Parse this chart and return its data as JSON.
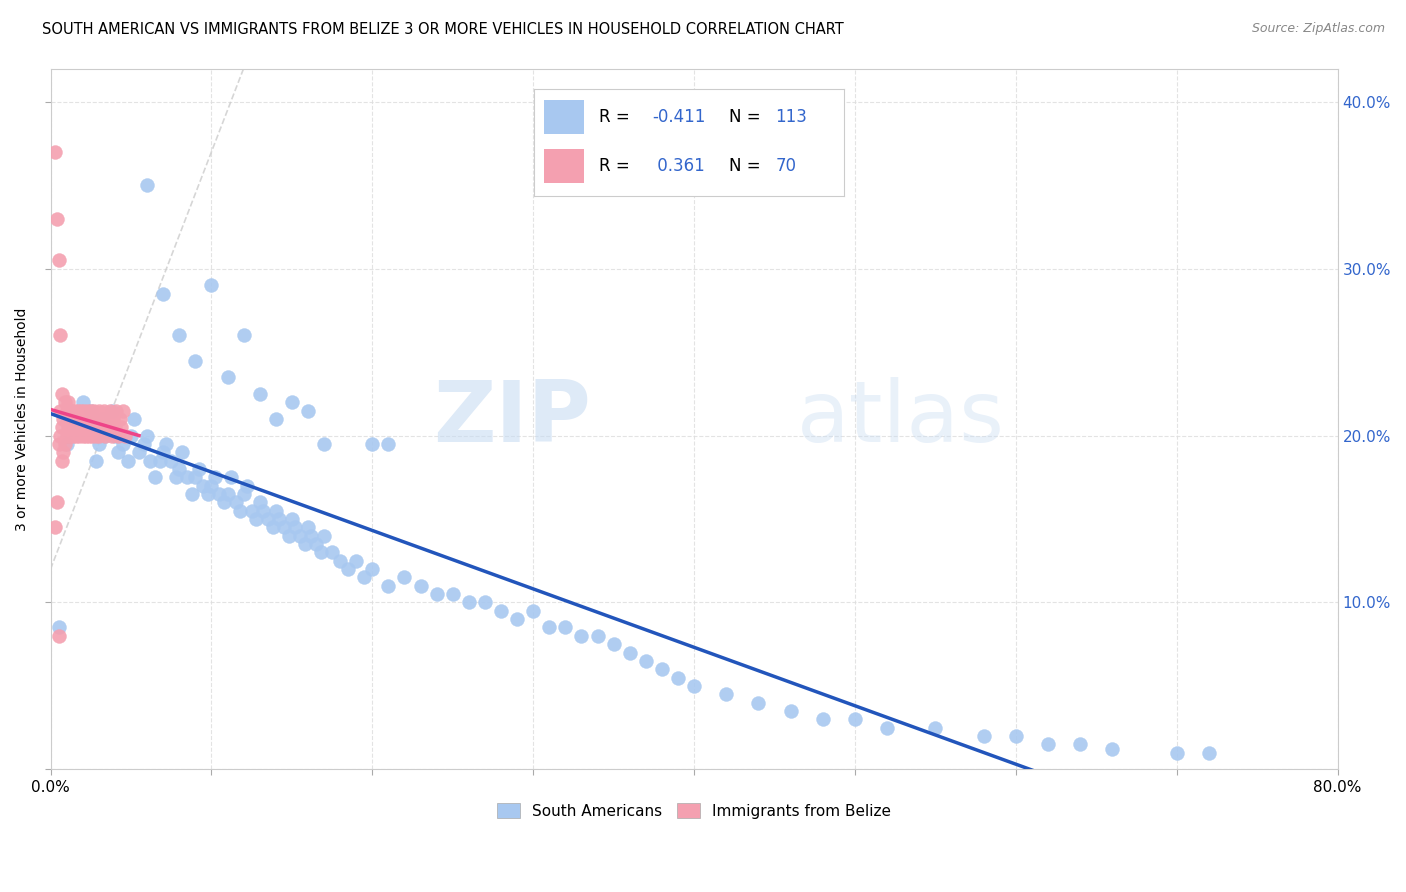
{
  "title": "SOUTH AMERICAN VS IMMIGRANTS FROM BELIZE 3 OR MORE VEHICLES IN HOUSEHOLD CORRELATION CHART",
  "source": "Source: ZipAtlas.com",
  "ylabel": "3 or more Vehicles in Household",
  "xlim": [
    0.0,
    0.8
  ],
  "ylim": [
    0.0,
    0.42
  ],
  "blue_color": "#A8C8F0",
  "pink_color": "#F4A0B0",
  "trendline_blue": "#2255BB",
  "trendline_pink": "#EE4488",
  "background_color": "#FFFFFF",
  "watermark_zip": "ZIP",
  "watermark_atlas": "atlas",
  "south_americans_x": [
    0.005,
    0.01,
    0.015,
    0.02,
    0.025,
    0.028,
    0.03,
    0.032,
    0.034,
    0.036,
    0.038,
    0.04,
    0.042,
    0.045,
    0.048,
    0.05,
    0.052,
    0.055,
    0.058,
    0.06,
    0.062,
    0.065,
    0.068,
    0.07,
    0.072,
    0.075,
    0.078,
    0.08,
    0.082,
    0.085,
    0.088,
    0.09,
    0.092,
    0.095,
    0.098,
    0.1,
    0.102,
    0.105,
    0.108,
    0.11,
    0.112,
    0.115,
    0.118,
    0.12,
    0.122,
    0.125,
    0.128,
    0.13,
    0.132,
    0.135,
    0.138,
    0.14,
    0.142,
    0.145,
    0.148,
    0.15,
    0.152,
    0.155,
    0.158,
    0.16,
    0.162,
    0.165,
    0.168,
    0.17,
    0.175,
    0.18,
    0.185,
    0.19,
    0.195,
    0.2,
    0.21,
    0.22,
    0.23,
    0.24,
    0.25,
    0.26,
    0.27,
    0.28,
    0.29,
    0.3,
    0.31,
    0.32,
    0.33,
    0.34,
    0.35,
    0.36,
    0.37,
    0.38,
    0.39,
    0.4,
    0.42,
    0.44,
    0.46,
    0.48,
    0.5,
    0.52,
    0.55,
    0.58,
    0.6,
    0.62,
    0.64,
    0.66,
    0.7,
    0.72,
    0.06,
    0.07,
    0.08,
    0.09,
    0.1,
    0.11,
    0.12,
    0.13,
    0.14,
    0.15,
    0.16,
    0.17,
    0.2,
    0.21
  ],
  "south_americans_y": [
    0.085,
    0.195,
    0.21,
    0.22,
    0.215,
    0.185,
    0.195,
    0.21,
    0.2,
    0.205,
    0.215,
    0.2,
    0.19,
    0.195,
    0.185,
    0.2,
    0.21,
    0.19,
    0.195,
    0.2,
    0.185,
    0.175,
    0.185,
    0.19,
    0.195,
    0.185,
    0.175,
    0.18,
    0.19,
    0.175,
    0.165,
    0.175,
    0.18,
    0.17,
    0.165,
    0.17,
    0.175,
    0.165,
    0.16,
    0.165,
    0.175,
    0.16,
    0.155,
    0.165,
    0.17,
    0.155,
    0.15,
    0.16,
    0.155,
    0.15,
    0.145,
    0.155,
    0.15,
    0.145,
    0.14,
    0.15,
    0.145,
    0.14,
    0.135,
    0.145,
    0.14,
    0.135,
    0.13,
    0.14,
    0.13,
    0.125,
    0.12,
    0.125,
    0.115,
    0.12,
    0.11,
    0.115,
    0.11,
    0.105,
    0.105,
    0.1,
    0.1,
    0.095,
    0.09,
    0.095,
    0.085,
    0.085,
    0.08,
    0.08,
    0.075,
    0.07,
    0.065,
    0.06,
    0.055,
    0.05,
    0.045,
    0.04,
    0.035,
    0.03,
    0.03,
    0.025,
    0.025,
    0.02,
    0.02,
    0.015,
    0.015,
    0.012,
    0.01,
    0.01,
    0.35,
    0.285,
    0.26,
    0.245,
    0.29,
    0.235,
    0.26,
    0.225,
    0.21,
    0.22,
    0.215,
    0.195,
    0.195,
    0.195
  ],
  "belize_x": [
    0.003,
    0.004,
    0.005,
    0.005,
    0.006,
    0.006,
    0.007,
    0.007,
    0.007,
    0.008,
    0.008,
    0.009,
    0.009,
    0.01,
    0.01,
    0.011,
    0.011,
    0.012,
    0.012,
    0.013,
    0.013,
    0.014,
    0.014,
    0.015,
    0.015,
    0.016,
    0.016,
    0.017,
    0.017,
    0.018,
    0.018,
    0.019,
    0.019,
    0.02,
    0.02,
    0.021,
    0.021,
    0.022,
    0.022,
    0.023,
    0.023,
    0.024,
    0.024,
    0.025,
    0.025,
    0.026,
    0.026,
    0.027,
    0.027,
    0.028,
    0.028,
    0.029,
    0.03,
    0.03,
    0.031,
    0.032,
    0.033,
    0.034,
    0.035,
    0.036,
    0.037,
    0.038,
    0.039,
    0.04,
    0.041,
    0.042,
    0.043,
    0.044,
    0.045,
    0.046,
    0.003,
    0.004,
    0.005,
    0.006
  ],
  "belize_y": [
    0.145,
    0.16,
    0.08,
    0.195,
    0.2,
    0.215,
    0.185,
    0.205,
    0.225,
    0.19,
    0.21,
    0.195,
    0.22,
    0.2,
    0.215,
    0.205,
    0.22,
    0.2,
    0.215,
    0.205,
    0.215,
    0.2,
    0.21,
    0.205,
    0.215,
    0.2,
    0.21,
    0.205,
    0.215,
    0.2,
    0.21,
    0.205,
    0.215,
    0.2,
    0.21,
    0.205,
    0.215,
    0.2,
    0.21,
    0.205,
    0.215,
    0.2,
    0.21,
    0.205,
    0.215,
    0.2,
    0.21,
    0.205,
    0.215,
    0.2,
    0.21,
    0.205,
    0.215,
    0.2,
    0.21,
    0.205,
    0.215,
    0.2,
    0.21,
    0.205,
    0.215,
    0.2,
    0.21,
    0.205,
    0.215,
    0.2,
    0.21,
    0.205,
    0.215,
    0.2,
    0.37,
    0.33,
    0.305,
    0.26
  ]
}
